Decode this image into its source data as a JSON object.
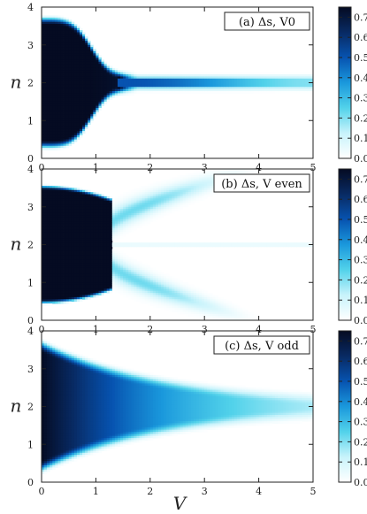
{
  "chart_data": [
    {
      "type": "heatmap",
      "panel_label": "(a) Δs, V0",
      "variant": "V0",
      "xlabel": "V",
      "ylabel": "n",
      "xlim": [
        0,
        5
      ],
      "ylim": [
        0,
        4
      ],
      "x_ticks": [
        "0",
        "1",
        "2",
        "3",
        "4",
        "5"
      ],
      "y_ticks": [
        "0",
        "1",
        "2",
        "3",
        "4"
      ],
      "colorbar_ticks": [
        "0.0",
        "0.1",
        "0.2",
        "0.3",
        "0.4",
        "0.5",
        "0.6",
        "0.7"
      ],
      "colorbar_range": [
        0,
        0.75
      ],
      "legend": "top-right box",
      "grid": false
    },
    {
      "type": "heatmap",
      "panel_label": "(b) Δs, V even",
      "variant": "even",
      "xlabel": "V",
      "ylabel": "n",
      "xlim": [
        0,
        5
      ],
      "ylim": [
        0,
        4
      ],
      "x_ticks": [
        "0",
        "1",
        "2",
        "3",
        "4",
        "5"
      ],
      "y_ticks": [
        "0",
        "1",
        "2",
        "3",
        "4"
      ],
      "colorbar_ticks": [
        "0.0",
        "0.1",
        "0.2",
        "0.3",
        "0.4",
        "0.5",
        "0.6",
        "0.7"
      ],
      "colorbar_range": [
        0,
        0.75
      ],
      "legend": "top-right box",
      "grid": false
    },
    {
      "type": "heatmap",
      "panel_label": "(c) Δs, V odd",
      "variant": "odd",
      "xlabel": "V",
      "ylabel": "n",
      "xlim": [
        0,
        5
      ],
      "ylim": [
        0,
        4
      ],
      "x_ticks": [
        "0",
        "1",
        "2",
        "3",
        "4",
        "5"
      ],
      "y_ticks": [
        "0",
        "1",
        "2",
        "3",
        "4"
      ],
      "colorbar_ticks": [
        "0.0",
        "0.1",
        "0.2",
        "0.3",
        "0.4",
        "0.5",
        "0.6",
        "0.7"
      ],
      "colorbar_range": [
        0,
        0.75
      ],
      "legend": "top-right box",
      "grid": false
    }
  ],
  "colors": {
    "colormap": [
      "#ffffff",
      "#c8f3fb",
      "#52d2ea",
      "#1a98dc",
      "#0753b0",
      "#082a63",
      "#050b22"
    ]
  }
}
